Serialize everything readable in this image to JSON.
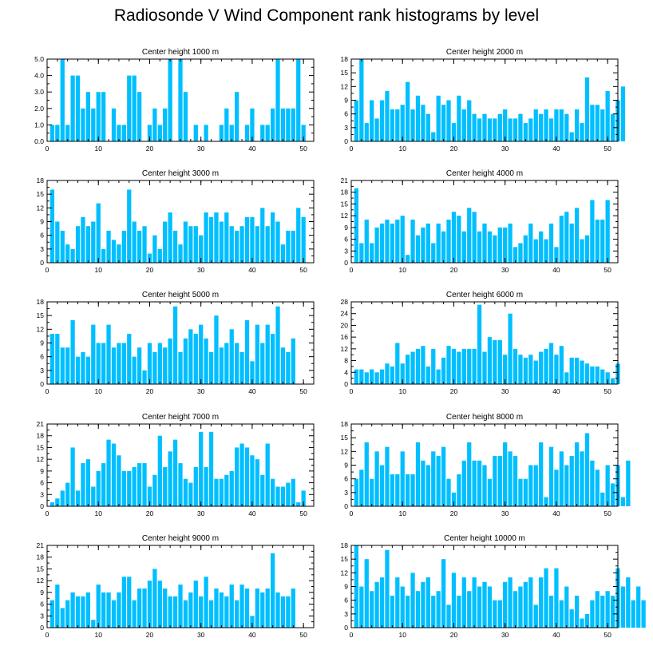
{
  "page_title": "Radiosonde V Wind Component rank histograms by level",
  "colors": {
    "bar": "#00bfff",
    "axis": "#000000"
  },
  "chart_data": [
    {
      "type": "bar",
      "title": "Center height 1000 m",
      "xlim": [
        0,
        52
      ],
      "xticks": [
        0,
        10,
        20,
        30,
        40,
        50
      ],
      "ylim": [
        0,
        5
      ],
      "yticks": [
        0,
        1,
        2,
        3,
        4,
        5
      ],
      "yticklabels": [
        "0.0",
        "1.0",
        "2.0",
        "3.0",
        "4.0",
        "5.0"
      ],
      "values": [
        1,
        1,
        5,
        1,
        4,
        4,
        2,
        3,
        2,
        3,
        3,
        0,
        2,
        1,
        1,
        4,
        4,
        3,
        0,
        1,
        2,
        1,
        2,
        5,
        0,
        5,
        3,
        0,
        1,
        0,
        1,
        0,
        0,
        1,
        2,
        1,
        3,
        0,
        1,
        2,
        0,
        1,
        1,
        2,
        5,
        2,
        2,
        2,
        5,
        1
      ]
    },
    {
      "type": "bar",
      "title": "Center height 2000 m",
      "xlim": [
        0,
        52
      ],
      "xticks": [
        0,
        10,
        20,
        30,
        40,
        50
      ],
      "ylim": [
        0,
        18
      ],
      "yticks": [
        0,
        3,
        6,
        9,
        12,
        15,
        18
      ],
      "yticklabels": [
        "0",
        "3",
        "6",
        "9",
        "12",
        "15",
        "18"
      ],
      "values": [
        9,
        18,
        4,
        9,
        5,
        9,
        11,
        7,
        7,
        8,
        13,
        7,
        10,
        8,
        6,
        2,
        10,
        8,
        9,
        4,
        10,
        7,
        9,
        6,
        5,
        6,
        5,
        5,
        6,
        7,
        5,
        5,
        6,
        4,
        5,
        7,
        6,
        7,
        5,
        7,
        7,
        6,
        2,
        7,
        4,
        14,
        8,
        8,
        7,
        11,
        6,
        9,
        12
      ]
    },
    {
      "type": "bar",
      "title": "Center height 3000 m",
      "xlim": [
        0,
        52
      ],
      "xticks": [
        0,
        10,
        20,
        30,
        40,
        50
      ],
      "ylim": [
        0,
        18
      ],
      "yticks": [
        0,
        3,
        6,
        9,
        12,
        15,
        18
      ],
      "yticklabels": [
        "0",
        "3",
        "6",
        "9",
        "12",
        "15",
        "18"
      ],
      "values": [
        16,
        9,
        7,
        4,
        3,
        8,
        10,
        8,
        9,
        13,
        3,
        7,
        5,
        4,
        7,
        16,
        9,
        7,
        8,
        2,
        6,
        3,
        9,
        11,
        7,
        4,
        9,
        8,
        8,
        6,
        11,
        10,
        11,
        9,
        11,
        8,
        7,
        8,
        10,
        10,
        8,
        12,
        8,
        11,
        9,
        4,
        7,
        7,
        12,
        10
      ]
    },
    {
      "type": "bar",
      "title": "Center height 4000 m",
      "xlim": [
        0,
        52
      ],
      "xticks": [
        0,
        10,
        20,
        30,
        40,
        50
      ],
      "ylim": [
        0,
        21
      ],
      "yticks": [
        0,
        3,
        6,
        9,
        12,
        15,
        18,
        21
      ],
      "yticklabels": [
        "0",
        "3",
        "6",
        "9",
        "12",
        "15",
        "18",
        "21"
      ],
      "values": [
        19,
        5,
        11,
        5,
        9,
        10,
        11,
        10,
        11,
        12,
        2,
        11,
        7,
        9,
        10,
        5,
        10,
        8,
        11,
        13,
        12,
        8,
        14,
        13,
        8,
        10,
        8,
        7,
        9,
        9,
        10,
        4,
        5,
        7,
        10,
        6,
        8,
        6,
        10,
        4,
        12,
        13,
        10,
        14,
        6,
        7,
        16,
        11,
        11,
        16
      ]
    },
    {
      "type": "bar",
      "title": "Center height 5000 m",
      "xlim": [
        0,
        52
      ],
      "xticks": [
        0,
        10,
        20,
        30,
        40,
        50
      ],
      "ylim": [
        0,
        18
      ],
      "yticks": [
        0,
        3,
        6,
        9,
        12,
        15,
        18
      ],
      "yticklabels": [
        "0",
        "3",
        "6",
        "9",
        "12",
        "15",
        "18"
      ],
      "values": [
        11,
        11,
        8,
        8,
        14,
        6,
        7,
        6,
        13,
        9,
        9,
        13,
        8,
        9,
        9,
        11,
        6,
        8,
        3,
        9,
        7,
        9,
        8,
        10,
        17,
        7,
        10,
        12,
        11,
        13,
        10,
        7,
        15,
        8,
        9,
        12,
        9,
        7,
        14,
        5,
        13,
        9,
        13,
        11,
        17,
        8,
        7,
        10
      ]
    },
    {
      "type": "bar",
      "title": "Center height 6000 m",
      "xlim": [
        0,
        52
      ],
      "xticks": [
        0,
        10,
        20,
        30,
        40,
        50
      ],
      "ylim": [
        0,
        28
      ],
      "yticks": [
        0,
        4,
        8,
        12,
        16,
        20,
        24,
        28
      ],
      "yticklabels": [
        "0",
        "4",
        "8",
        "12",
        "16",
        "20",
        "24",
        "28"
      ],
      "values": [
        5,
        5,
        4,
        5,
        4,
        5,
        7,
        6,
        14,
        7,
        10,
        11,
        12,
        13,
        6,
        12,
        5,
        9,
        13,
        12,
        11,
        12,
        12,
        12,
        27,
        11,
        16,
        15,
        15,
        10,
        24,
        12,
        10,
        9,
        10,
        8,
        11,
        12,
        14,
        10,
        13,
        4,
        9,
        9,
        8,
        7,
        6,
        6,
        5,
        4,
        2,
        7
      ]
    },
    {
      "type": "bar",
      "title": "Center height 7000 m",
      "xlim": [
        0,
        52
      ],
      "xticks": [
        0,
        10,
        20,
        30,
        40,
        50
      ],
      "ylim": [
        0,
        21
      ],
      "yticks": [
        0,
        3,
        6,
        9,
        12,
        15,
        18,
        21
      ],
      "yticklabels": [
        "0",
        "3",
        "6",
        "9",
        "12",
        "15",
        "18",
        "21"
      ],
      "values": [
        1,
        2,
        4,
        6,
        15,
        4,
        11,
        12,
        5,
        9,
        11,
        17,
        16,
        13,
        9,
        9,
        10,
        11,
        11,
        5,
        8,
        18,
        10,
        14,
        17,
        11,
        7,
        6,
        10,
        19,
        10,
        19,
        7,
        7,
        8,
        9,
        15,
        16,
        15,
        13,
        12,
        8,
        16,
        7,
        5,
        5,
        6,
        7,
        1,
        4
      ]
    },
    {
      "type": "bar",
      "title": "Center height 8000 m",
      "xlim": [
        0,
        52
      ],
      "xticks": [
        0,
        10,
        20,
        30,
        40,
        50
      ],
      "ylim": [
        0,
        18
      ],
      "yticks": [
        0,
        3,
        6,
        9,
        12,
        15,
        18
      ],
      "yticklabels": [
        "0",
        "3",
        "6",
        "9",
        "12",
        "15",
        "18"
      ],
      "values": [
        6,
        8,
        14,
        6,
        12,
        9,
        13,
        7,
        7,
        12,
        7,
        7,
        14,
        10,
        9,
        12,
        11,
        13,
        6,
        3,
        7,
        10,
        14,
        10,
        10,
        9,
        6,
        11,
        11,
        14,
        12,
        11,
        6,
        6,
        9,
        9,
        14,
        2,
        13,
        8,
        12,
        9,
        11,
        14,
        12,
        16,
        10,
        8,
        3,
        9,
        5,
        9,
        2,
        10
      ]
    },
    {
      "type": "bar",
      "title": "Center height 9000 m",
      "xlim": [
        0,
        52
      ],
      "xticks": [
        0,
        10,
        20,
        30,
        40,
        50
      ],
      "ylim": [
        0,
        21
      ],
      "yticks": [
        0,
        3,
        6,
        9,
        12,
        15,
        18,
        21
      ],
      "yticklabels": [
        "0",
        "3",
        "6",
        "9",
        "12",
        "15",
        "18",
        "21"
      ],
      "values": [
        7,
        11,
        5,
        7,
        9,
        8,
        8,
        9,
        2,
        11,
        9,
        9,
        7,
        9,
        13,
        13,
        7,
        10,
        10,
        12,
        15,
        12,
        10,
        8,
        8,
        11,
        7,
        9,
        12,
        8,
        13,
        7,
        10,
        9,
        8,
        11,
        7,
        11,
        10,
        3,
        10,
        9,
        10,
        19,
        9,
        8,
        8,
        10
      ]
    },
    {
      "type": "bar",
      "title": "Center height 10000 m",
      "xlim": [
        0,
        52
      ],
      "xticks": [
        0,
        10,
        20,
        30,
        40,
        50
      ],
      "ylim": [
        0,
        18
      ],
      "yticks": [
        0,
        3,
        6,
        9,
        12,
        15,
        18
      ],
      "yticklabels": [
        "0",
        "3",
        "6",
        "9",
        "12",
        "15",
        "18"
      ],
      "values": [
        18,
        9,
        15,
        8,
        10,
        11,
        17,
        7,
        11,
        9,
        7,
        12,
        8,
        10,
        11,
        7,
        8,
        15,
        5,
        12,
        7,
        11,
        8,
        11,
        9,
        10,
        9,
        6,
        6,
        10,
        11,
        8,
        9,
        10,
        11,
        5,
        11,
        13,
        7,
        13,
        6,
        9,
        4,
        7,
        2,
        3,
        6,
        8,
        7,
        8,
        7,
        13,
        9,
        11,
        6,
        9,
        6
      ]
    }
  ]
}
